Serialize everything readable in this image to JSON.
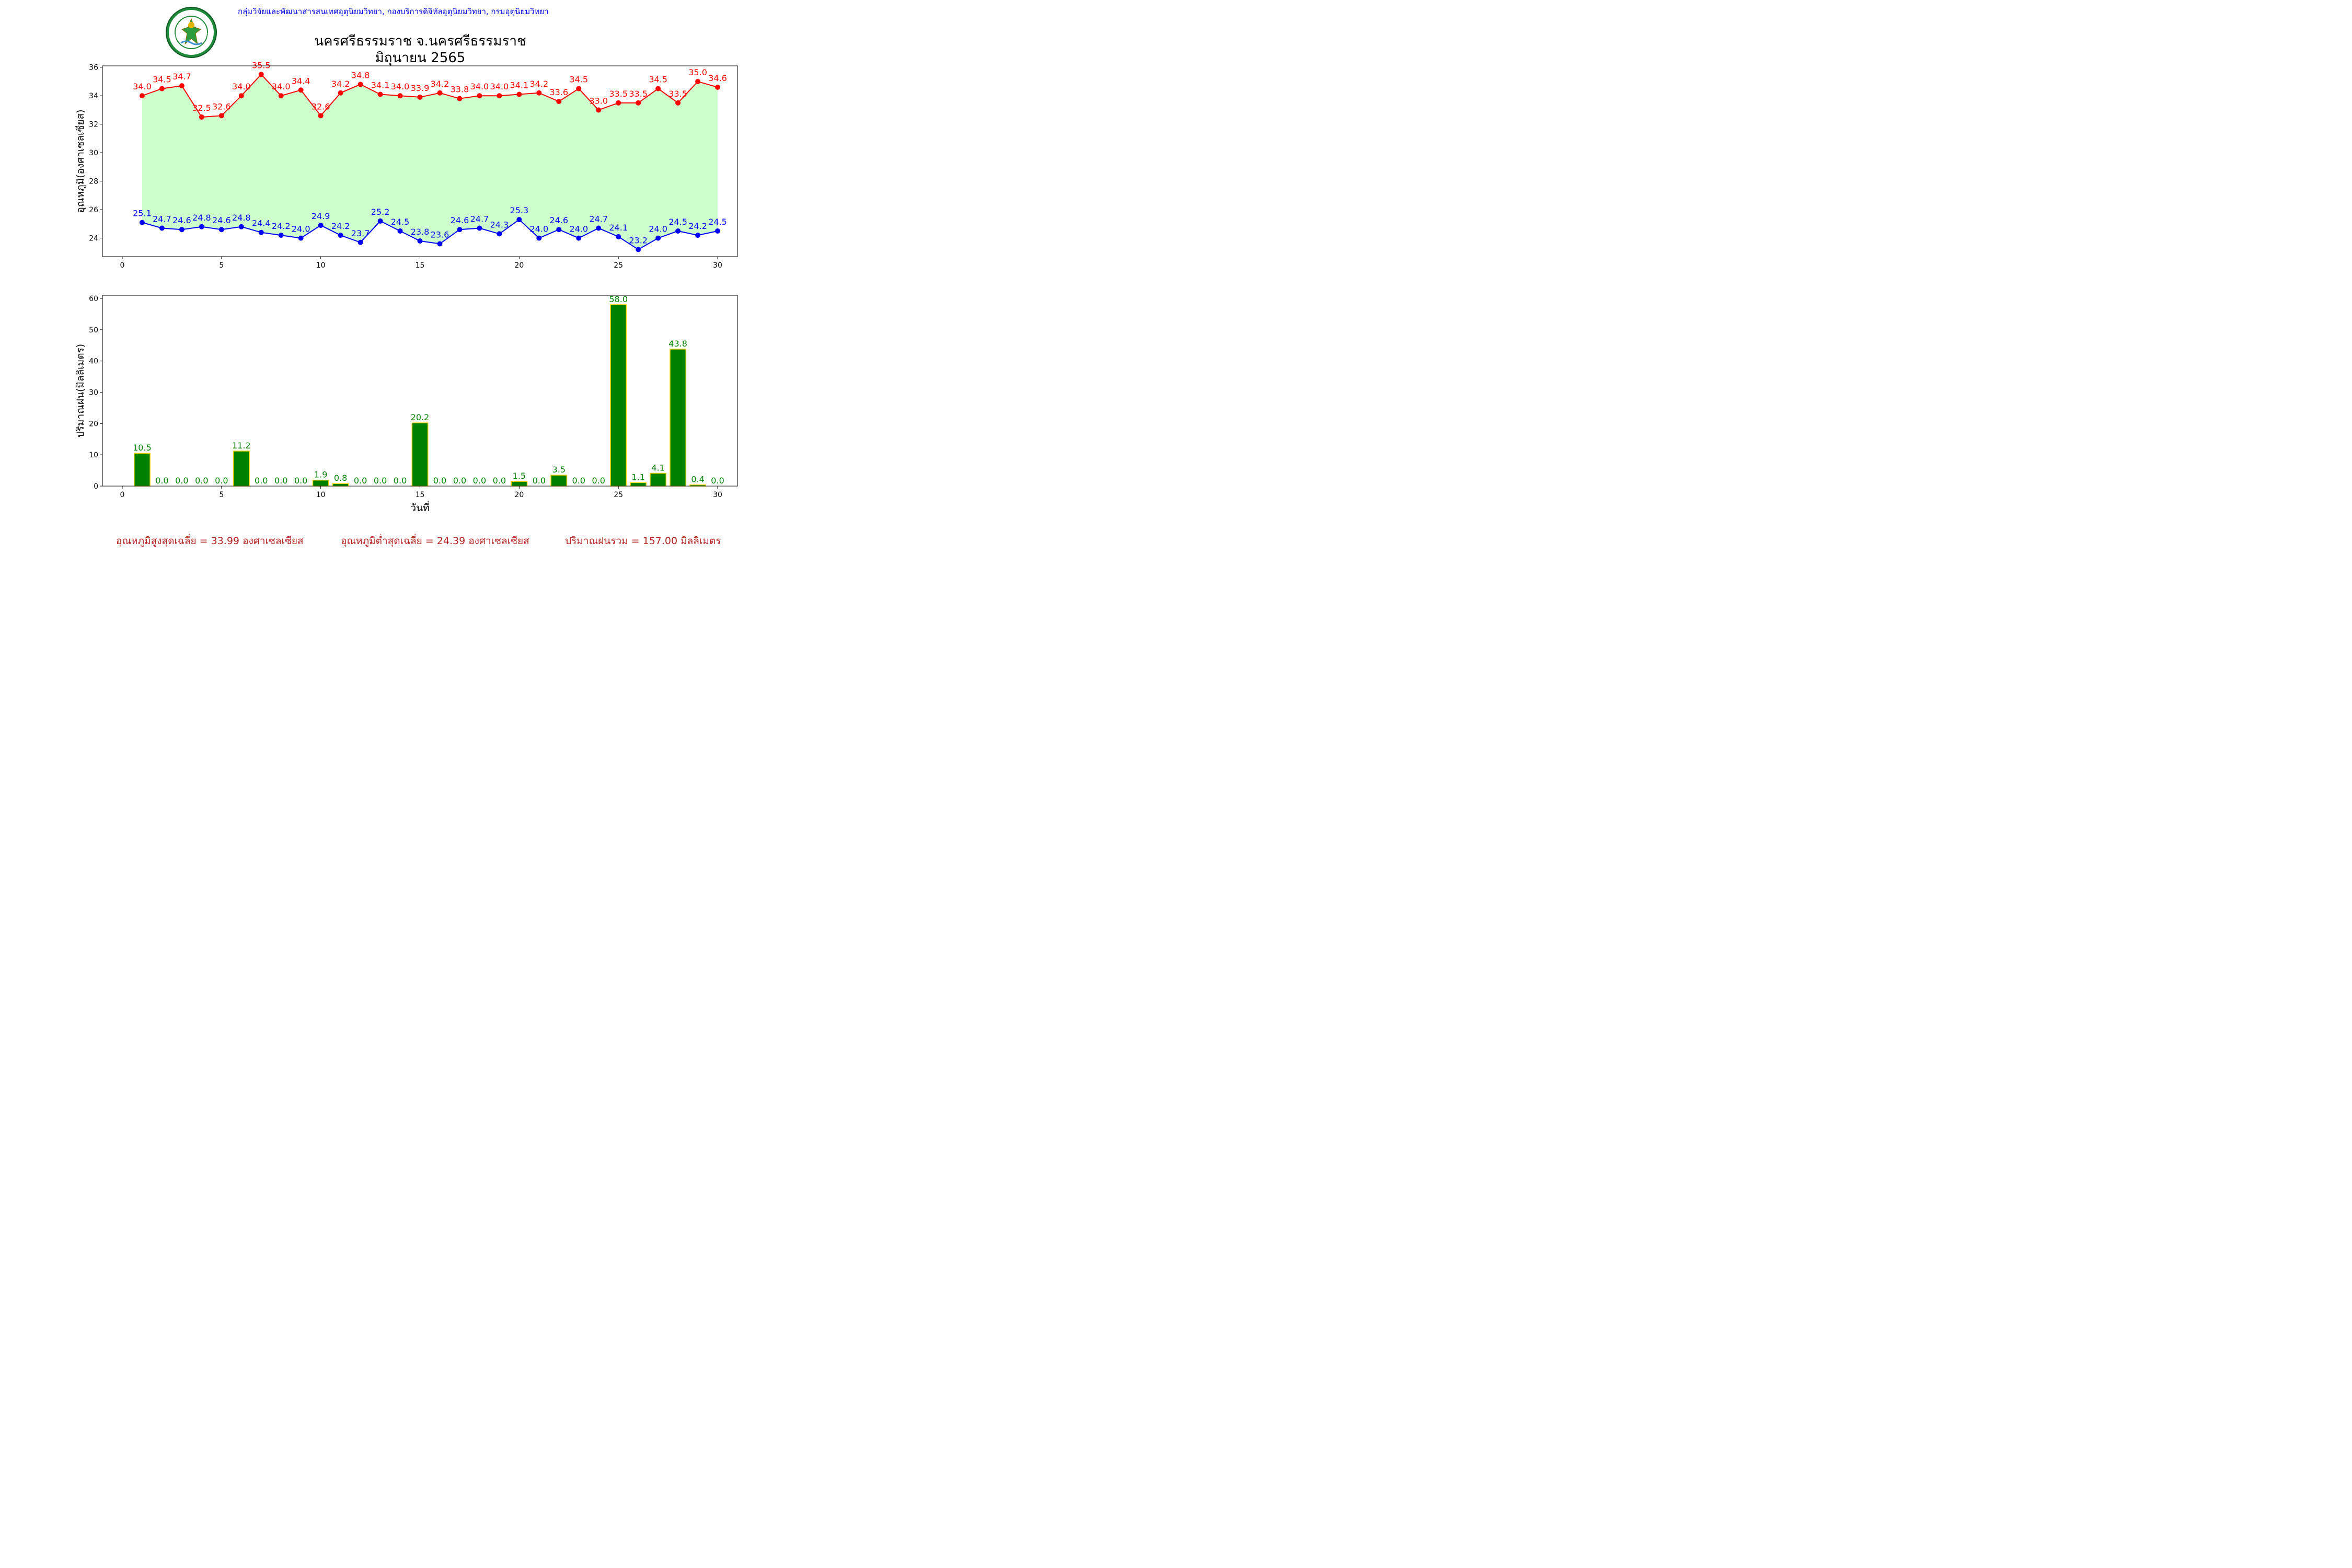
{
  "header": {
    "organization": "กลุ่มวิจัยและพัฒนาสารสนเทศอุตุนิยมวิทยา, กองบริการดิจิทัลอุตุนิยมวิทยา, กรมอุตุนิยมวิทยา",
    "title": "นครศรีธรรมราช จ.นครศรีธรรมราช",
    "subtitle": "มิถุนายน 2565",
    "logo_text_top": "กรมอุตุนิยมวิทยา",
    "logo_text_bottom": "METEOROLOGICAL DEPARTMENT"
  },
  "footer": {
    "avg_max": "อุณหภูมิสูงสุดเฉลี่ย = 33.99 องศาเซลเซียส",
    "avg_min": "อุณหภูมิต่ำสุดเฉลี่ย = 24.39 องศาเซลเซียส",
    "total_rain": "ปริมาณฝนรวม = 157.00 มิลลิเมตร"
  },
  "colors": {
    "max_line": "#ff0000",
    "min_line": "#0000ff",
    "fill_between": "#ccffcc",
    "rain_bar": "#008000",
    "rain_bar_edge": "#ffd700",
    "rain_label": "#008000",
    "footer_text": "#b22222",
    "header_org": "#0000ee"
  },
  "chart_data": [
    {
      "type": "line",
      "title": "",
      "xlabel": "",
      "ylabel": "อุณหภูมิ(องศาเซลเซียส)",
      "xlim": [
        -1,
        31
      ],
      "ylim": [
        22.7,
        36.1
      ],
      "xticks": [
        0,
        5,
        10,
        15,
        20,
        25,
        30
      ],
      "yticks": [
        24,
        26,
        28,
        30,
        32,
        34,
        36
      ],
      "fill_between": true,
      "grid": false,
      "x": [
        1,
        2,
        3,
        4,
        5,
        6,
        7,
        8,
        9,
        10,
        11,
        12,
        13,
        14,
        15,
        16,
        17,
        18,
        19,
        20,
        21,
        22,
        23,
        24,
        25,
        26,
        27,
        28,
        29,
        30
      ],
      "series": [
        {
          "values": [
            34.0,
            34.5,
            34.7,
            32.5,
            32.6,
            34.0,
            35.5,
            34.0,
            34.4,
            32.6,
            34.2,
            34.8,
            34.1,
            34.0,
            33.9,
            34.2,
            33.8,
            34.0,
            34.0,
            34.1,
            34.2,
            33.6,
            34.5,
            33.0,
            33.5,
            33.5,
            34.5,
            33.5,
            35.0,
            34.6
          ]
        },
        {
          "values": [
            25.1,
            24.7,
            24.6,
            24.8,
            24.6,
            24.8,
            24.4,
            24.2,
            24.0,
            24.9,
            24.2,
            23.7,
            25.2,
            24.5,
            23.8,
            23.6,
            24.6,
            24.7,
            24.3,
            25.3,
            24.0,
            24.6,
            24.0,
            24.7,
            24.1,
            23.2,
            24.0,
            24.5,
            24.2,
            24.5
          ]
        }
      ]
    },
    {
      "type": "bar",
      "title": "",
      "xlabel": "วันที่",
      "ylabel": "ปริมาณฝน(มิลลิเมตร)",
      "xlim": [
        -1,
        31
      ],
      "ylim": [
        0,
        61
      ],
      "xticks": [
        0,
        5,
        10,
        15,
        20,
        25,
        30
      ],
      "yticks": [
        0,
        10,
        20,
        30,
        40,
        50,
        60
      ],
      "grid": false,
      "x": [
        1,
        2,
        3,
        4,
        5,
        6,
        7,
        8,
        9,
        10,
        11,
        12,
        13,
        14,
        15,
        16,
        17,
        18,
        19,
        20,
        21,
        22,
        23,
        24,
        25,
        26,
        27,
        28,
        29,
        30
      ],
      "values": [
        10.5,
        0.0,
        0.0,
        0.0,
        0.0,
        11.2,
        0.0,
        0.0,
        0.0,
        1.9,
        0.8,
        0.0,
        0.0,
        0.0,
        20.2,
        0.0,
        0.0,
        0.0,
        0.0,
        1.5,
        0.0,
        3.5,
        0.0,
        0.0,
        58.0,
        1.1,
        4.1,
        43.8,
        0.4,
        0.0
      ]
    }
  ]
}
